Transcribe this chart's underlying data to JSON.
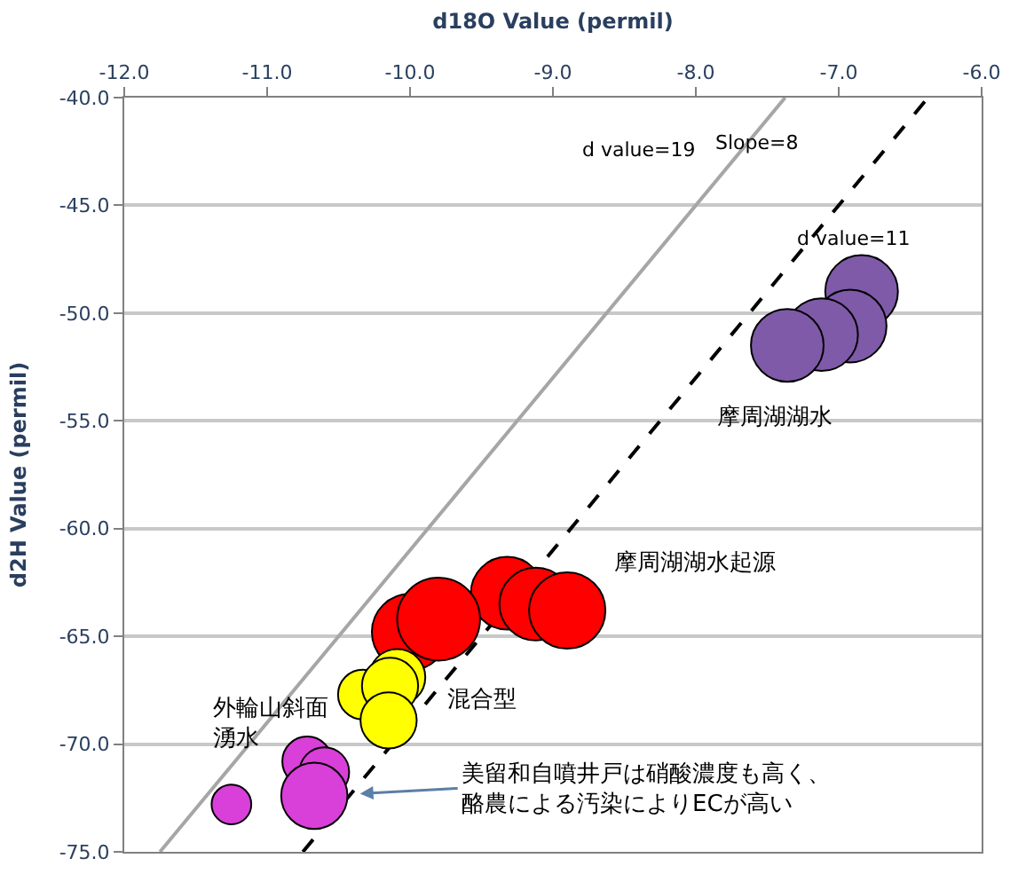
{
  "chart_data": {
    "type": "bubble",
    "xlabel": "d18O Value (permil)",
    "ylabel": "d2H Value (permil)",
    "xlim": [
      -12,
      -6
    ],
    "xticks": [
      {
        "value": -12,
        "label": "-12.0"
      },
      {
        "value": -11,
        "label": "-11.0"
      },
      {
        "value": -10,
        "label": "-10.0"
      },
      {
        "value": -9,
        "label": "-9.0"
      },
      {
        "value": -8,
        "label": "-8.0"
      },
      {
        "value": -7,
        "label": "-7.0"
      },
      {
        "value": -6,
        "label": "-6.0"
      }
    ],
    "ylim": [
      -75,
      -40
    ],
    "yticks": [
      {
        "value": -75,
        "label": "-75.0"
      },
      {
        "value": -70,
        "label": "-70.0"
      },
      {
        "value": -65,
        "label": "-65.0"
      },
      {
        "value": -60,
        "label": "-60.0"
      },
      {
        "value": -55,
        "label": "-55.0"
      },
      {
        "value": -50,
        "label": "-50.0"
      },
      {
        "value": -45,
        "label": "-45.0"
      },
      {
        "value": -40,
        "label": "-40.0"
      }
    ],
    "grid": "y",
    "series": [
      {
        "type": "line",
        "color": "#a6a6a6",
        "line_style": "solid",
        "x": [
          -11.75,
          -7.375
        ],
        "values": [
          -75,
          -40
        ]
      },
      {
        "type": "line",
        "color": "#000000",
        "line_style": "dashed",
        "x": [
          -10.75,
          -6.375
        ],
        "values": [
          -75,
          -40
        ]
      },
      {
        "color": "#7f5aa8",
        "x": [
          -6.84,
          -6.92,
          -7.12,
          -7.36
        ],
        "values": [
          -49.0,
          -50.6,
          -51.0,
          -51.5
        ],
        "sizes": [
          0.77,
          0.77,
          0.77,
          0.77
        ]
      },
      {
        "color": "#ff0000",
        "x": [
          -9.32,
          -9.12,
          -8.9,
          -10.0,
          -9.8
        ],
        "values": [
          -63.0,
          -63.5,
          -63.8,
          -64.8,
          -64.2
        ],
        "sizes": [
          0.77,
          0.77,
          0.85,
          0.85,
          1.0
        ]
      },
      {
        "color": "#ffff00",
        "x": [
          -10.09,
          -10.33,
          -10.14,
          -10.15
        ],
        "values": [
          -66.9,
          -67.7,
          -67.3,
          -68.9
        ],
        "sizes": [
          0.46,
          0.36,
          0.46,
          0.46
        ]
      },
      {
        "color": "#d93fd9",
        "x": [
          -10.72,
          -10.6,
          -10.67,
          -11.25
        ],
        "values": [
          -70.8,
          -71.3,
          -72.4,
          -72.8
        ],
        "sizes": [
          0.36,
          0.36,
          0.64,
          0.23
        ]
      }
    ],
    "annotations": [
      "d value=19",
      "Slope=8",
      "d value=11",
      "摩周湖湖水",
      "摩周湖湖水起源",
      "混合型",
      "外輪山斜面湧水",
      {
        "text": "美留和自噴井戸は硝酸濃度も高く、酪農による汚染によりECが高い",
        "x": -10.35,
        "y": -72.3
      }
    ]
  }
}
